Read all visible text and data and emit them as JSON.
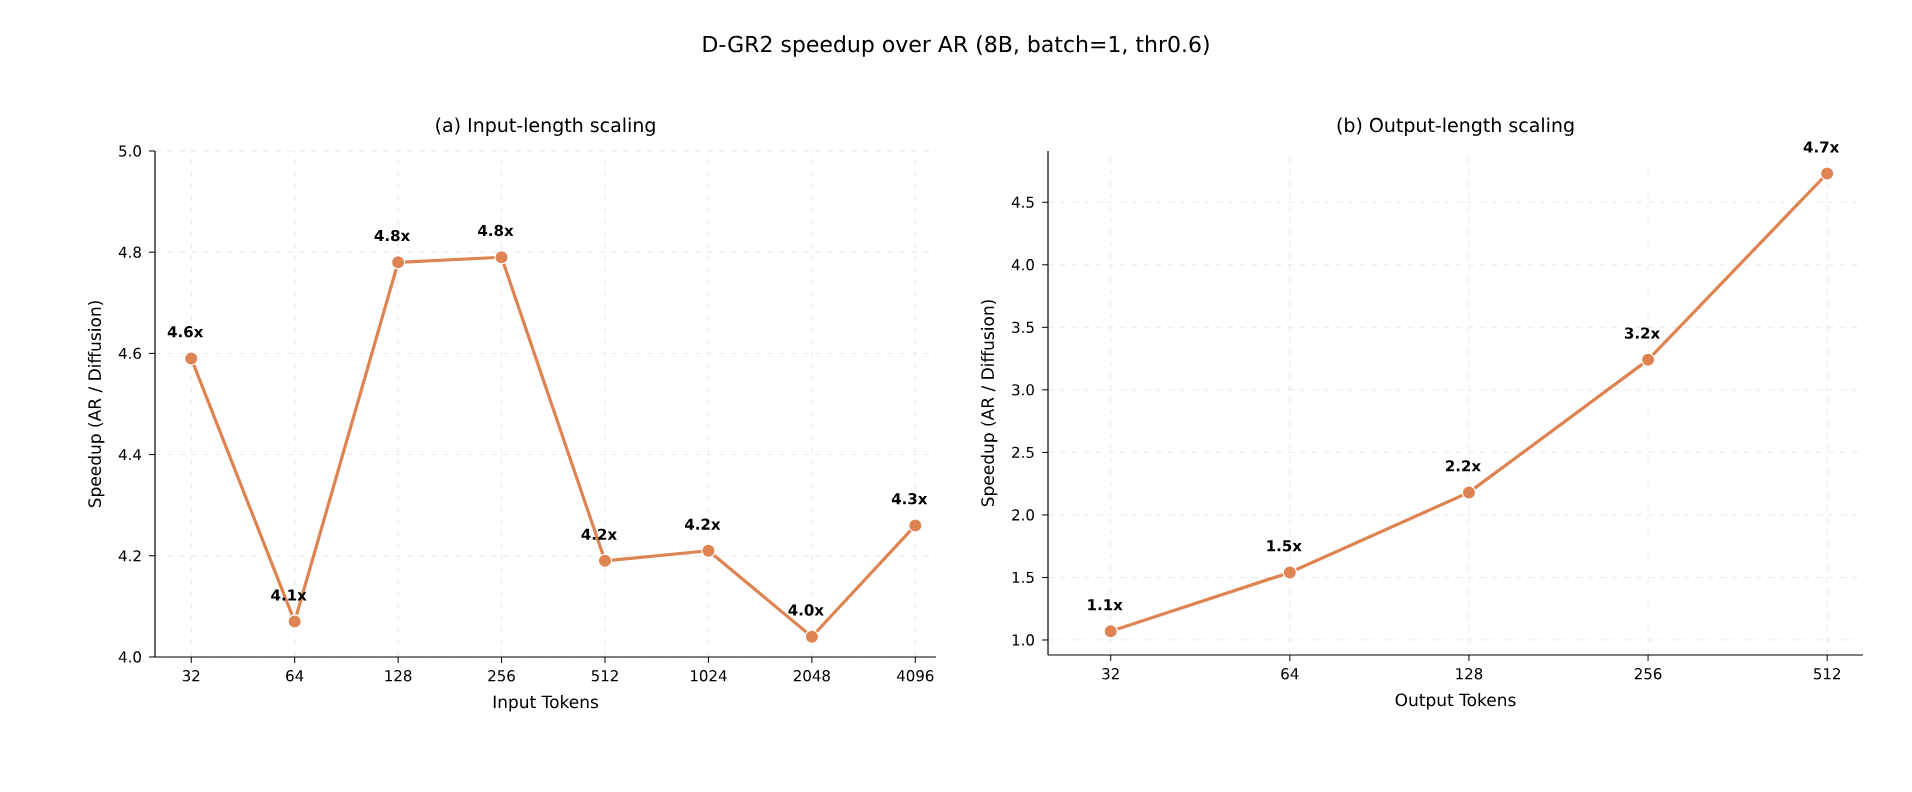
{
  "chart_data": [
    {
      "type": "line",
      "title": "D-GR2 speedup over AR (8B, batch=1, thr0.6)",
      "subtitle": "(a) Input-length scaling",
      "xlabel": "Input Tokens",
      "ylabel": "Speedup (AR / Diffusion)",
      "categories": [
        "32",
        "64",
        "128",
        "256",
        "512",
        "1024",
        "2048",
        "4096"
      ],
      "series": [
        {
          "color": "#dd8452",
          "values": [
            4.59,
            4.07,
            4.78,
            4.79,
            4.19,
            4.21,
            4.04,
            4.26
          ],
          "value_labels": [
            "4.6x",
            "4.1x",
            "4.8x",
            "4.8x",
            "4.2x",
            "4.2x",
            "4.0x",
            "4.3x"
          ]
        }
      ],
      "ylim": [
        4.0,
        5.0
      ],
      "yticks": [
        {
          "value": 4,
          "label": "4.0"
        },
        {
          "value": 4.2,
          "label": "4.2"
        },
        {
          "value": 4.4,
          "label": "4.4"
        },
        {
          "value": 4.6,
          "label": "4.6"
        },
        {
          "value": 4.8,
          "label": "4.8"
        },
        {
          "value": 5,
          "label": "5.0"
        }
      ],
      "grid": true,
      "marker": "circle",
      "line_style": "solid"
    },
    {
      "type": "line",
      "subtitle": "(b) Output-length scaling",
      "xlabel": "Output Tokens",
      "ylabel": "Speedup (AR / Diffusion)",
      "categories": [
        "32",
        "64",
        "128",
        "256",
        "512"
      ],
      "series": [
        {
          "color": "#dd8452",
          "values": [
            1.07,
            1.54,
            2.18,
            3.24,
            4.73
          ],
          "value_labels": [
            "1.1x",
            "1.5x",
            "2.2x",
            "3.2x",
            "4.7x"
          ]
        }
      ],
      "ylim": [
        0.88,
        4.91
      ],
      "yticks": [
        {
          "value": 1,
          "label": "1.0"
        },
        {
          "value": 1.5,
          "label": "1.5"
        },
        {
          "value": 2,
          "label": "2.0"
        },
        {
          "value": 2.5,
          "label": "2.5"
        },
        {
          "value": 3,
          "label": "3.0"
        },
        {
          "value": 3.5,
          "label": "3.5"
        },
        {
          "value": 4,
          "label": "4.0"
        },
        {
          "value": 4.5,
          "label": "4.5"
        }
      ],
      "grid": true,
      "marker": "circle",
      "line_style": "solid"
    }
  ]
}
